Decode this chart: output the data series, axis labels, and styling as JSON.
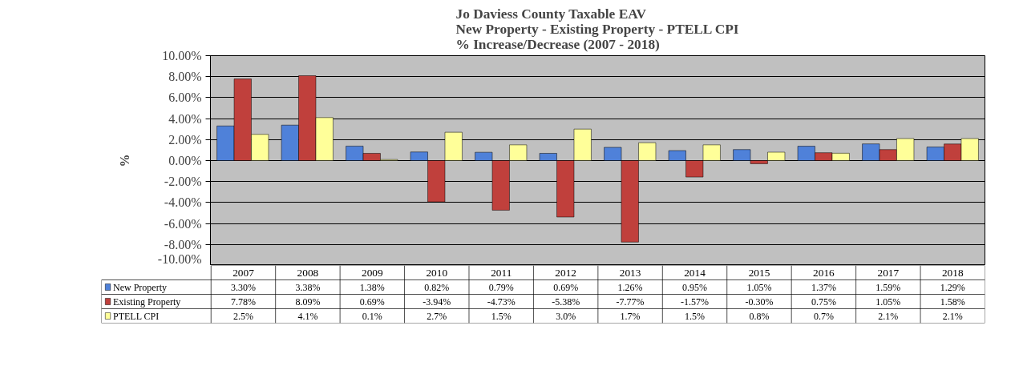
{
  "chart_data": {
    "type": "bar",
    "title": "Jo Daviess County Taxable EAV\nNew Property - Existing Property - PTELL CPI\n% Increase/Decrease (2007 - 2018)",
    "ylabel": "%",
    "categories": [
      "2007",
      "2008",
      "2009",
      "2010",
      "2011",
      "2012",
      "2013",
      "2014",
      "2015",
      "2016",
      "2017",
      "2018"
    ],
    "series": [
      {
        "name": "New Property",
        "color": "#4f81d9",
        "values": [
          3.3,
          3.38,
          1.38,
          0.82,
          0.79,
          0.69,
          1.26,
          0.95,
          1.05,
          1.37,
          1.59,
          1.29
        ],
        "value_labels": [
          "3.30%",
          "3.38%",
          "1.38%",
          "0.82%",
          "0.79%",
          "0.69%",
          "1.26%",
          "0.95%",
          "1.05%",
          "1.37%",
          "1.59%",
          "1.29%"
        ]
      },
      {
        "name": "Existing Property",
        "color": "#c0403c",
        "values": [
          7.78,
          8.09,
          0.69,
          -3.94,
          -4.73,
          -5.38,
          -7.77,
          -1.57,
          -0.3,
          0.75,
          1.05,
          1.58
        ],
        "value_labels": [
          "7.78%",
          "8.09%",
          "0.69%",
          "-3.94%",
          "-4.73%",
          "-5.38%",
          "-7.77%",
          "-1.57%",
          "-0.30%",
          "0.75%",
          "1.05%",
          "1.58%"
        ]
      },
      {
        "name": "PTELL CPI",
        "color": "#ffff99",
        "values": [
          2.5,
          4.1,
          0.1,
          2.7,
          1.5,
          3.0,
          1.7,
          1.5,
          0.8,
          0.7,
          2.1,
          2.1
        ],
        "value_labels": [
          "2.5%",
          "4.1%",
          "0.1%",
          "2.7%",
          "1.5%",
          "3.0%",
          "1.7%",
          "1.5%",
          "0.8%",
          "0.7%",
          "2.1%",
          "2.1%"
        ]
      }
    ],
    "ylim": [
      -10,
      10
    ],
    "yticks": [
      {
        "value": -10,
        "label": "-10.00%"
      },
      {
        "value": -8,
        "label": "-8.00%"
      },
      {
        "value": -6,
        "label": "-6.00%"
      },
      {
        "value": -4,
        "label": "-4.00%"
      },
      {
        "value": -2,
        "label": "-2.00%"
      },
      {
        "value": 0,
        "label": "0.00%"
      },
      {
        "value": 2,
        "label": "2.00%"
      },
      {
        "value": 4,
        "label": "4.00%"
      },
      {
        "value": 6,
        "label": "6.00%"
      },
      {
        "value": 8,
        "label": "8.00%"
      },
      {
        "value": 10,
        "label": "10.00%"
      }
    ],
    "grid": "y",
    "legend": "bottom"
  }
}
